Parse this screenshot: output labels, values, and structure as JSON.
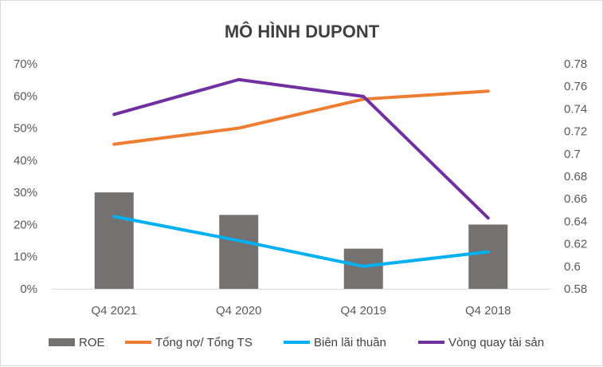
{
  "chart_data": {
    "type": "bar",
    "title": "MÔ HÌNH DUPONT",
    "categories": [
      "Q4 2021",
      "Q4 2020",
      "Q4 2019",
      "Q4 2018"
    ],
    "y_left": {
      "min": 0,
      "max": 0.7,
      "step": 0.1,
      "tick_labels": [
        "0%",
        "10%",
        "20%",
        "30%",
        "40%",
        "50%",
        "60%",
        "70%"
      ]
    },
    "y_right": {
      "min": 0.58,
      "max": 0.78,
      "step": 0.02,
      "tick_labels": [
        "0.58",
        "0.6",
        "0.62",
        "0.64",
        "0.66",
        "0.68",
        "0.7",
        "0.72",
        "0.74",
        "0.76",
        "0.78"
      ]
    },
    "series": [
      {
        "name": "ROE",
        "type": "bar",
        "axis": "left",
        "color": "#767171",
        "values": [
          0.3,
          0.23,
          0.125,
          0.2
        ]
      },
      {
        "name": "Tổng nợ/ Tổng TS",
        "type": "line",
        "axis": "left",
        "color": "#ed7d31",
        "values": [
          0.45,
          0.5,
          0.59,
          0.615
        ]
      },
      {
        "name": "Biên lãi thuần",
        "type": "line",
        "axis": "left",
        "color": "#00b0f0",
        "values": [
          0.225,
          0.15,
          0.07,
          0.115
        ]
      },
      {
        "name": "Vòng quay tài sản",
        "type": "line",
        "axis": "right",
        "color": "#7030a0",
        "values": [
          0.735,
          0.766,
          0.751,
          0.643
        ]
      }
    ],
    "grid": false,
    "legend": "bottom"
  }
}
